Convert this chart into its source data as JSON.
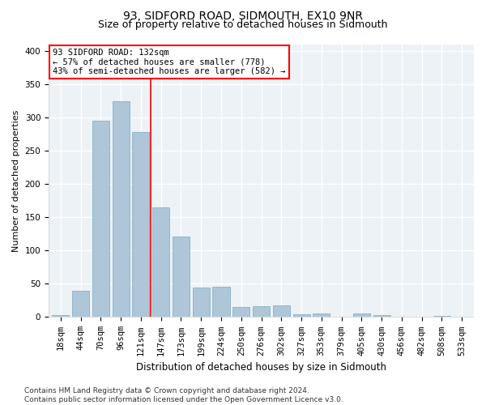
{
  "title": "93, SIDFORD ROAD, SIDMOUTH, EX10 9NR",
  "subtitle": "Size of property relative to detached houses in Sidmouth",
  "xlabel": "Distribution of detached houses by size in Sidmouth",
  "ylabel": "Number of detached properties",
  "bar_labels": [
    "18sqm",
    "44sqm",
    "70sqm",
    "96sqm",
    "121sqm",
    "147sqm",
    "173sqm",
    "199sqm",
    "224sqm",
    "250sqm",
    "276sqm",
    "302sqm",
    "327sqm",
    "353sqm",
    "379sqm",
    "405sqm",
    "430sqm",
    "456sqm",
    "482sqm",
    "508sqm",
    "533sqm"
  ],
  "bar_values": [
    3,
    39,
    295,
    325,
    278,
    165,
    121,
    44,
    46,
    15,
    16,
    17,
    4,
    5,
    0,
    6,
    3,
    0,
    0,
    2,
    0
  ],
  "bar_color": "#aec6d8",
  "bar_edgecolor": "#7aaabf",
  "vline_x": 4.5,
  "vline_color": "red",
  "annotation_text": "93 SIDFORD ROAD: 132sqm\n← 57% of detached houses are smaller (778)\n43% of semi-detached houses are larger (582) →",
  "annotation_box_color": "white",
  "annotation_box_edgecolor": "red",
  "ylim": [
    0,
    410
  ],
  "yticks": [
    0,
    50,
    100,
    150,
    200,
    250,
    300,
    350,
    400
  ],
  "background_color": "#edf2f7",
  "grid_color": "white",
  "footer": "Contains HM Land Registry data © Crown copyright and database right 2024.\nContains public sector information licensed under the Open Government Licence v3.0.",
  "title_fontsize": 10,
  "subtitle_fontsize": 9,
  "xlabel_fontsize": 8.5,
  "ylabel_fontsize": 8,
  "tick_fontsize": 7.5,
  "footer_fontsize": 6.5
}
